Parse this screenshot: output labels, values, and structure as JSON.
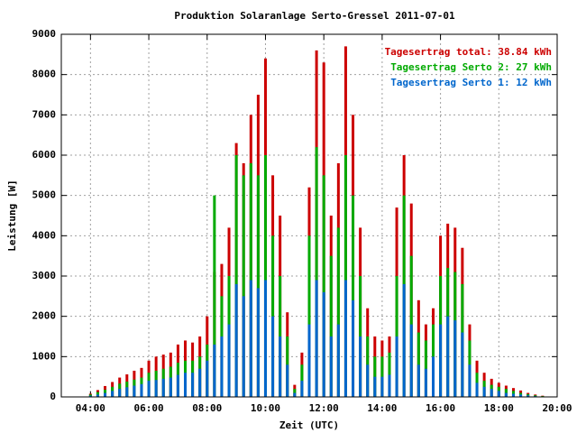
{
  "chart_data": {
    "type": "bar",
    "title": "Produktion Solaranlage Serto-Gressel 2011-07-01",
    "x_label": "Zeit (UTC)",
    "y_label": "Leistung [W]",
    "x": [
      4,
      4.25,
      4.5,
      4.75,
      5,
      5.25,
      5.5,
      5.75,
      6,
      6.25,
      6.5,
      6.75,
      7,
      7.25,
      7.5,
      7.75,
      8,
      8.25,
      8.5,
      8.75,
      9,
      9.25,
      9.5,
      9.75,
      10,
      10.25,
      10.5,
      10.75,
      11,
      11.25,
      11.5,
      11.75,
      12,
      12.25,
      12.5,
      12.75,
      13,
      13.25,
      13.5,
      13.75,
      14,
      14.25,
      14.5,
      14.75,
      15,
      15.25,
      15.5,
      15.75,
      16,
      16.25,
      16.5,
      16.75,
      17,
      17.25,
      17.5,
      17.75,
      18,
      18.25,
      18.5,
      18.75,
      19,
      19.25,
      19.5
    ],
    "series": [
      {
        "name": "Tagesertrag total: 38.84 kWh",
        "color": "#cc0000",
        "values": [
          80,
          170,
          270,
          370,
          480,
          560,
          650,
          720,
          900,
          1000,
          1050,
          1100,
          1300,
          1400,
          1350,
          1500,
          2000,
          3100,
          3300,
          4200,
          6300,
          5800,
          7000,
          7500,
          8400,
          5500,
          4500,
          2100,
          300,
          1100,
          5200,
          8600,
          8300,
          4500,
          5800,
          8700,
          7000,
          4200,
          2200,
          1500,
          1400,
          1500,
          4700,
          6000,
          4800,
          2400,
          1800,
          2200,
          4000,
          4300,
          4200,
          3700,
          1800,
          900,
          600,
          450,
          350,
          280,
          220,
          160,
          100,
          60,
          30
        ]
      },
      {
        "name": "Tagesertrag Serto 2: 27 kWh",
        "color": "#00aa00",
        "values": [
          60,
          120,
          180,
          250,
          330,
          380,
          430,
          480,
          600,
          650,
          700,
          750,
          850,
          900,
          900,
          1000,
          1300,
          5000,
          2500,
          3000,
          6000,
          5500,
          5800,
          5500,
          6000,
          4000,
          3000,
          1500,
          200,
          800,
          4000,
          6200,
          5500,
          3500,
          4200,
          6000,
          5000,
          3000,
          1500,
          1000,
          1000,
          1100,
          3000,
          5000,
          3500,
          1600,
          1400,
          1800,
          3000,
          3200,
          3100,
          2800,
          1400,
          600,
          400,
          300,
          250,
          200,
          150,
          100,
          70,
          40,
          20
        ]
      },
      {
        "name": "Tagesertrag Serto 1: 12 kWh",
        "color": "#0066cc",
        "values": [
          30,
          60,
          100,
          150,
          200,
          240,
          280,
          320,
          400,
          420,
          450,
          480,
          550,
          600,
          600,
          700,
          900,
          1300,
          1500,
          1800,
          2800,
          2500,
          2900,
          2700,
          2900,
          2000,
          1500,
          800,
          100,
          400,
          1800,
          2900,
          2600,
          1500,
          1800,
          2900,
          2400,
          1500,
          800,
          500,
          500,
          550,
          1500,
          2800,
          1800,
          800,
          700,
          1000,
          1800,
          2000,
          1900,
          1600,
          800,
          350,
          250,
          200,
          150,
          100,
          80,
          60,
          40,
          20,
          10
        ]
      }
    ],
    "xlim": [
      3,
      20
    ],
    "xticks": [
      {
        "value": 4,
        "label": "04:00"
      },
      {
        "value": 6,
        "label": "06:00"
      },
      {
        "value": 8,
        "label": "08:00"
      },
      {
        "value": 10,
        "label": "10:00"
      },
      {
        "value": 12,
        "label": "12:00"
      },
      {
        "value": 14,
        "label": "14:00"
      },
      {
        "value": 16,
        "label": "16:00"
      },
      {
        "value": 18,
        "label": "18:00"
      },
      {
        "value": 20,
        "label": "20:00"
      }
    ],
    "ylim": [
      0,
      9000
    ],
    "yticks": [
      0,
      1000,
      2000,
      3000,
      4000,
      5000,
      6000,
      7000,
      8000,
      9000
    ],
    "grid": true,
    "legend": "top-right"
  }
}
